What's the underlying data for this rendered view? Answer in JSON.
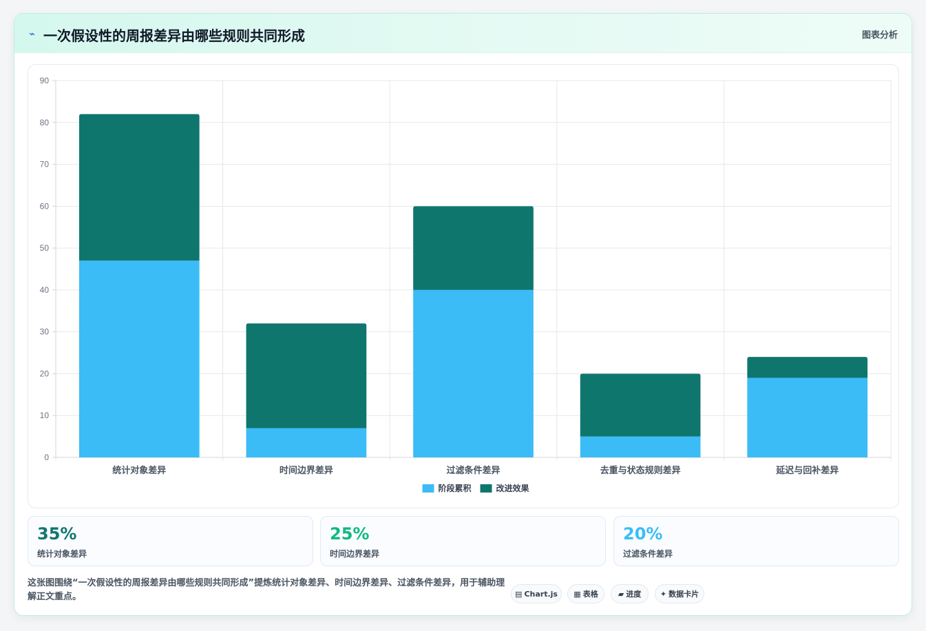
{
  "header": {
    "icon": "lightning-icon",
    "title": "一次假设性的周报差异由哪些规则共同形成",
    "tag": "图表分析"
  },
  "chart_data": {
    "type": "bar",
    "stacked": true,
    "categories": [
      "统计对象差异",
      "时间边界差异",
      "过滤条件差异",
      "去重与状态规则差异",
      "延迟与回补差异"
    ],
    "series": [
      {
        "name": "阶段累积",
        "values": [
          47,
          7,
          40,
          5,
          19
        ],
        "color": "#3bbcf7"
      },
      {
        "name": "改进效果",
        "values": [
          35,
          25,
          20,
          15,
          5
        ],
        "color": "#0f766e"
      }
    ],
    "ylim": [
      0,
      90
    ],
    "yticks": [
      0,
      10,
      20,
      30,
      40,
      50,
      60,
      70,
      80,
      90
    ],
    "grid": true,
    "legend": "bottom"
  },
  "stats": [
    {
      "value": "35%",
      "label": "统计对象差异",
      "color": "#0f766e"
    },
    {
      "value": "25%",
      "label": "时间边界差异",
      "color": "#10b981"
    },
    {
      "value": "20%",
      "label": "过滤条件差异",
      "color": "#38bdf8"
    }
  ],
  "footnote": "这张图围绕“一次假设性的周报差异由哪些规则共同形成”提炼统计对象差异、时间边界差异、过滤条件差异，用于辅助理解正文重点。",
  "chips": [
    {
      "icon": "chart-icon",
      "glyph": "▤",
      "label": "Chart.js"
    },
    {
      "icon": "table-icon",
      "glyph": "▦",
      "label": "表格"
    },
    {
      "icon": "progress-icon",
      "glyph": "▰",
      "label": "进度"
    },
    {
      "icon": "card-icon",
      "glyph": "✦",
      "label": "数据卡片"
    }
  ]
}
